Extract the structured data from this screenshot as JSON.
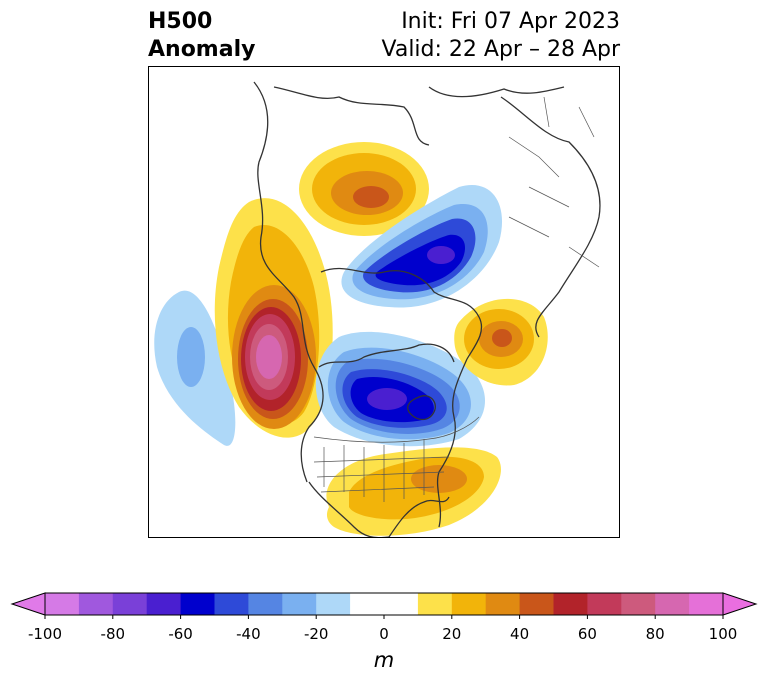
{
  "title": {
    "left_line1": "H500",
    "left_line2": "Anomaly",
    "right_line1": "Init: Fri 07 Apr 2023",
    "right_line2": "Valid: 22 Apr – 28 Apr"
  },
  "colorbar": {
    "unit": "m",
    "ticks": [
      "-100",
      "-80",
      "-60",
      "-40",
      "-20",
      "0",
      "20",
      "40",
      "60",
      "80",
      "100"
    ],
    "levels": [
      -100,
      -90,
      -80,
      -70,
      -60,
      -50,
      -40,
      -30,
      -20,
      -10,
      10,
      20,
      30,
      40,
      50,
      60,
      70,
      80,
      90,
      100
    ],
    "colors": [
      "#d57ae6",
      "#a058de",
      "#7a40d8",
      "#4a1fd0",
      "#0000cd",
      "#2e4ad8",
      "#5585e3",
      "#7ab0f0",
      "#aed8f8",
      "#ffffff",
      "#fde14a",
      "#f2b40a",
      "#e08a12",
      "#c9561a",
      "#b2232a",
      "#c23a5a",
      "#cd5a7d",
      "#d667b0",
      "#e570d8"
    ],
    "min_extend_color": "#e07ae8",
    "max_extend_color": "#ea6ee0"
  },
  "map": {
    "projection": "north-polar-stereographic",
    "anomaly_features": [
      {
        "name": "ridge-alaska-bering",
        "sign": "positive",
        "peak": 55
      },
      {
        "name": "ridge-ne-pacific",
        "sign": "positive",
        "peak": 95
      },
      {
        "name": "trough-arctic-ocean",
        "sign": "negative",
        "peak": -60
      },
      {
        "name": "trough-central-canada",
        "sign": "negative",
        "peak": -65
      },
      {
        "name": "ridge-eastern-atlantic",
        "sign": "positive",
        "peak": 45
      },
      {
        "name": "ridge-eastern-us",
        "sign": "positive",
        "peak": 40
      },
      {
        "name": "trough-central-pacific",
        "sign": "negative",
        "peak": -35
      }
    ]
  }
}
